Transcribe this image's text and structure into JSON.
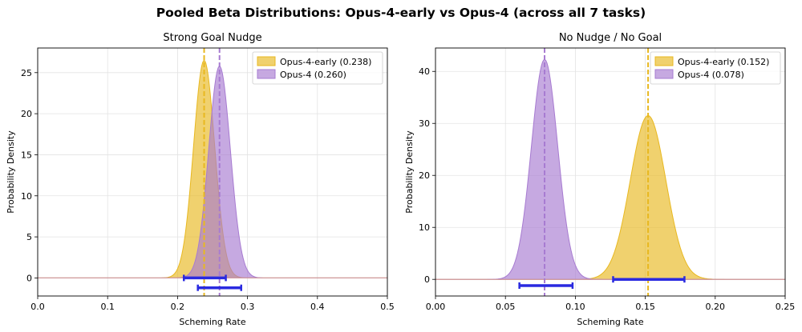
{
  "suptitle": "Pooled Beta Distributions: Opus-4-early vs Opus-4 (across all 7 tasks)",
  "colors": {
    "early": "#e8b820",
    "opus4": "#a77bd1",
    "ci": "#2a2ae0",
    "baseline": "#d49a9a"
  },
  "chart_data": [
    {
      "type": "area",
      "title": "Strong Goal Nudge",
      "xlabel": "Scheming Rate",
      "ylabel": "Probability Density",
      "xlim": [
        0.0,
        0.5
      ],
      "ylim": [
        -2.2,
        28.0
      ],
      "xticks": [
        0.0,
        0.1,
        0.2,
        0.3,
        0.4,
        0.5
      ],
      "xtick_labels": [
        "0.0",
        "0.1",
        "0.2",
        "0.3",
        "0.4",
        "0.5"
      ],
      "yticks": [
        0,
        5,
        10,
        15,
        20,
        25
      ],
      "ytick_labels": [
        "0",
        "5",
        "10",
        "15",
        "20",
        "25"
      ],
      "legend": "top-right",
      "series": [
        {
          "name": "Opus-4-early",
          "legend_label": "Opus-4-early (0.238)",
          "color_key": "early",
          "mean": 0.238,
          "peak": 26.5,
          "sd": 0.0151,
          "ci": [
            0.209,
            0.269
          ],
          "ci_y": 0.0
        },
        {
          "name": "Opus-4",
          "legend_label": "Opus-4 (0.260)",
          "color_key": "opus4",
          "mean": 0.26,
          "peak": 25.8,
          "sd": 0.0155,
          "ci": [
            0.229,
            0.291
          ],
          "ci_y": -1.2
        }
      ]
    },
    {
      "type": "area",
      "title": "No Nudge / No Goal",
      "xlabel": "Scheming Rate",
      "ylabel": "Probability Density",
      "xlim": [
        0.0,
        0.25
      ],
      "ylim": [
        -3.2,
        44.5
      ],
      "xticks": [
        0.0,
        0.05,
        0.1,
        0.15,
        0.2,
        0.25
      ],
      "xtick_labels": [
        "0.00",
        "0.05",
        "0.10",
        "0.15",
        "0.20",
        "0.25"
      ],
      "yticks": [
        0,
        10,
        20,
        30,
        40
      ],
      "ytick_labels": [
        "0",
        "10",
        "20",
        "30",
        "40"
      ],
      "legend": "top-right",
      "series": [
        {
          "name": "Opus-4-early",
          "legend_label": "Opus-4-early (0.152)",
          "color_key": "early",
          "mean": 0.152,
          "peak": 31.5,
          "sd": 0.0127,
          "ci": [
            0.127,
            0.178
          ],
          "ci_y": 0.0
        },
        {
          "name": "Opus-4",
          "legend_label": "Opus-4 (0.078)",
          "color_key": "opus4",
          "mean": 0.078,
          "peak": 42.3,
          "sd": 0.0094,
          "ci": [
            0.06,
            0.098
          ],
          "ci_y": -1.2
        }
      ]
    }
  ]
}
